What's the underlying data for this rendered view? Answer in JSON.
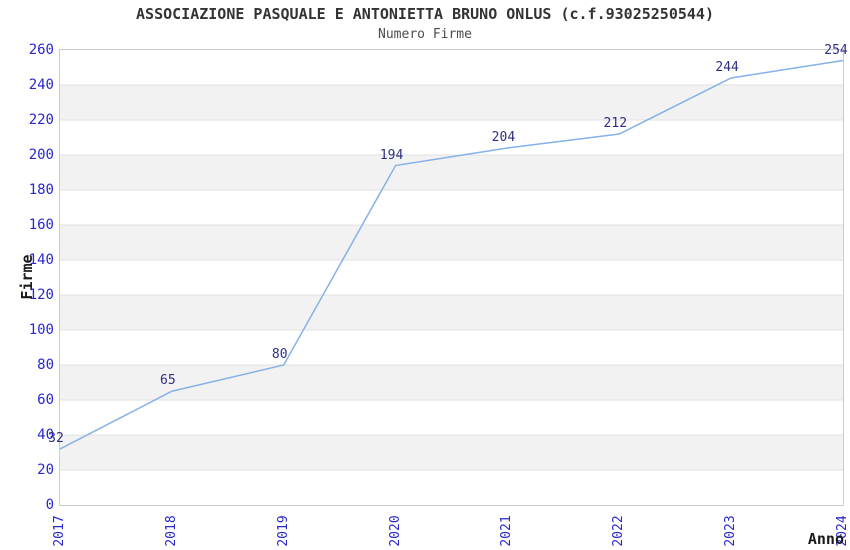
{
  "header": {
    "title": "ASSOCIAZIONE PASQUALE E ANTONIETTA BRUNO ONLUS (c.f.93025250544)",
    "subtitle": "Numero Firme"
  },
  "chart_data": {
    "type": "line",
    "title": "ASSOCIAZIONE PASQUALE E ANTONIETTA BRUNO ONLUS (c.f.93025250544)",
    "subtitle": "Numero Firme",
    "xlabel": "Anno",
    "ylabel": "Firme",
    "categories": [
      "2017",
      "2018",
      "2019",
      "2020",
      "2021",
      "2022",
      "2023",
      "2024"
    ],
    "series": [
      {
        "name": "Numero Firme",
        "values": [
          32,
          65,
          80,
          194,
          204,
          212,
          244,
          254
        ]
      }
    ],
    "data_labels_shown": [
      32,
      65,
      80,
      194,
      204,
      212,
      244,
      254
    ],
    "ylim": [
      0,
      260
    ],
    "ytick_step": 20,
    "yticks": [
      0,
      20,
      40,
      60,
      80,
      100,
      120,
      140,
      160,
      180,
      200,
      220,
      240,
      260
    ],
    "grid": "alternating-horizontal-bands",
    "legend_position": "none",
    "colors": {
      "line": "#85b1e8",
      "tick_label": "#2828cf",
      "data_label": "#2e2e85",
      "band_fill": "#f2f2f2",
      "grid_line": "#e2e2e2",
      "plot_border": "#cccccc",
      "title_text": "#333333",
      "subtitle_text": "#4d4d4d",
      "axis_label_text": "#1a1a1a",
      "background": "#ffffff"
    }
  }
}
